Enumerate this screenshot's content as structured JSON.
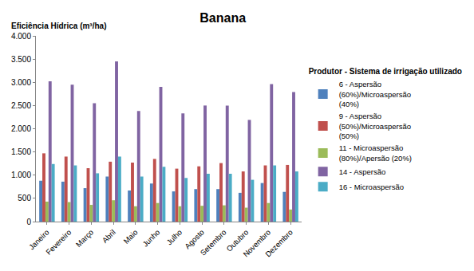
{
  "chart_data": {
    "type": "bar",
    "title": "Banana",
    "y_label": "Eficiência Hídrica (m³/ha)",
    "legend_title": "Produtor - Sistema de irrigação utilizado",
    "legend": "right",
    "grid": false,
    "categories": [
      "Janeiro",
      "Fevereiro",
      "Março",
      "Abril",
      "Maio",
      "Junho",
      "Julho",
      "Agosto",
      "Setembro",
      "Outubro",
      "Novembro",
      "Dezembro"
    ],
    "series": [
      {
        "name": "6 - Aspersão (60%)/Microaspersão (40%)",
        "color": "#4F81BD",
        "values": [
          880,
          860,
          720,
          970,
          670,
          820,
          650,
          700,
          700,
          620,
          830,
          640
        ]
      },
      {
        "name": "9 - Aspersão (50%)/Microaspersão (50%)",
        "color": "#C0504D",
        "values": [
          1470,
          1400,
          1150,
          1290,
          1270,
          1350,
          1140,
          1190,
          1260,
          1080,
          1210,
          1220
        ]
      },
      {
        "name": "11 - Microaspersão (80%)/Apersão (20%)",
        "color": "#9BBB59",
        "values": [
          430,
          420,
          360,
          460,
          330,
          400,
          330,
          340,
          350,
          300,
          400,
          260
        ]
      },
      {
        "name": "14 - Aspersão",
        "color": "#8064A2",
        "values": [
          3020,
          2950,
          2550,
          3450,
          2380,
          2900,
          2330,
          2500,
          2500,
          2190,
          2960,
          2790
        ]
      },
      {
        "name": "16 - Microaspersão",
        "color": "#4BACC6",
        "values": [
          1240,
          1210,
          1040,
          1400,
          970,
          1180,
          940,
          1030,
          1030,
          900,
          1210,
          1080
        ]
      }
    ],
    "ylim": [
      0,
      4000
    ],
    "yticks": [
      0,
      500,
      {
        "value": 1000,
        "label": "1.000"
      },
      {
        "value": 1500,
        "label": "1.500"
      },
      {
        "value": 2000,
        "label": "2.000"
      },
      {
        "value": 2500,
        "label": "2.500"
      },
      {
        "value": 3000,
        "label": "3.000"
      },
      {
        "value": 3500,
        "label": "3.500"
      },
      {
        "value": 4000,
        "label": "4.000"
      }
    ]
  }
}
